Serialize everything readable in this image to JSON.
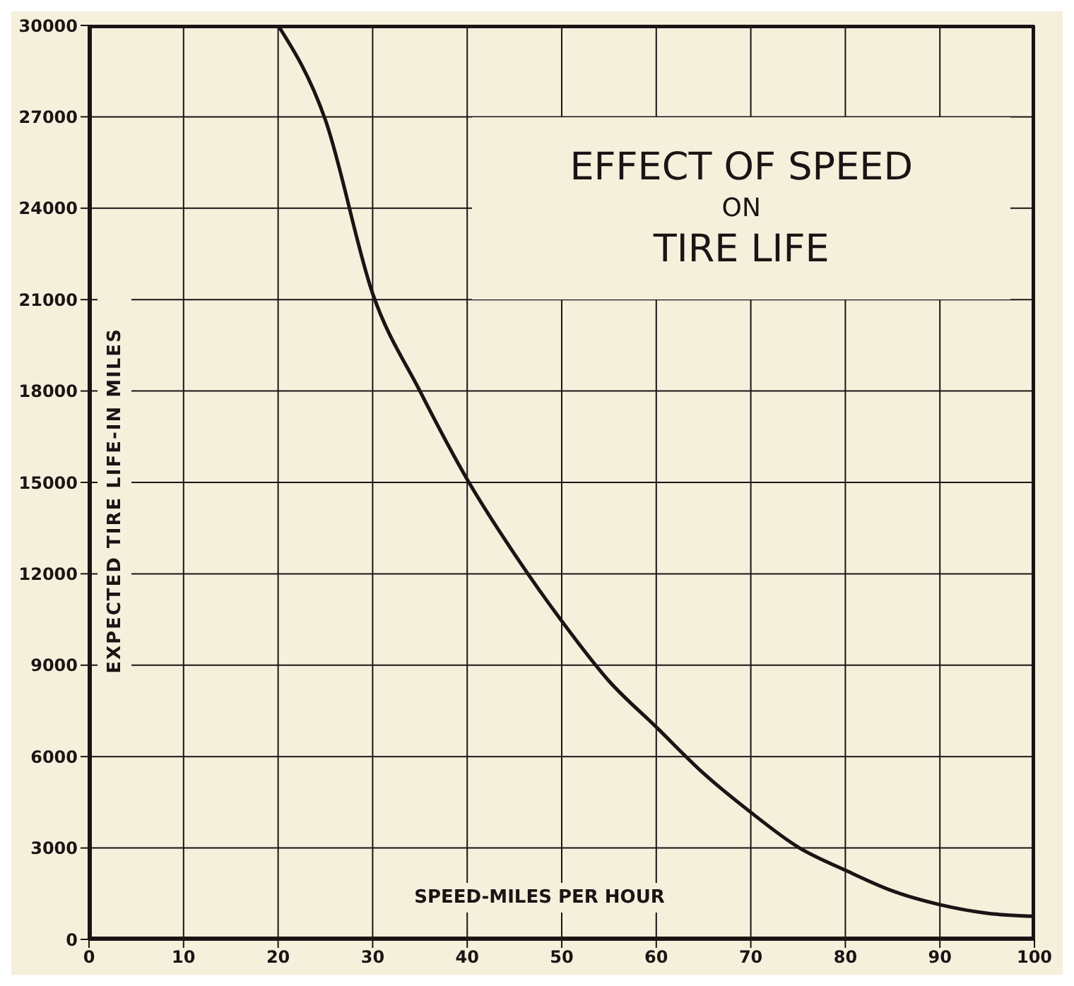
{
  "chart_data": {
    "type": "line",
    "title": "EFFECT OF SPEED\nON\nTIRE LIFE",
    "xlabel": "SPEED-MILES PER HOUR",
    "ylabel": "EXPECTED TIRE LIFE-IN MILES",
    "x": [
      20,
      25,
      30,
      35,
      40,
      45,
      50,
      55,
      60,
      65,
      70,
      75,
      80,
      85,
      90,
      95,
      100
    ],
    "series": [
      {
        "color": "#1a1414",
        "values": [
          30000,
          26900,
          21200,
          18000,
          15100,
          12650,
          10450,
          8480,
          6970,
          5450,
          4170,
          3030,
          2270,
          1590,
          1140,
          860,
          760
        ]
      }
    ],
    "xlim": [
      0,
      100
    ],
    "xticks": [
      0,
      10,
      20,
      30,
      40,
      50,
      60,
      70,
      80,
      90,
      100
    ],
    "ylim": [
      0,
      30000
    ],
    "yticks": [
      0,
      3000,
      6000,
      9000,
      12000,
      15000,
      18000,
      21000,
      24000,
      27000,
      30000
    ],
    "grid": true,
    "marker": "none",
    "line_style": "solid"
  }
}
